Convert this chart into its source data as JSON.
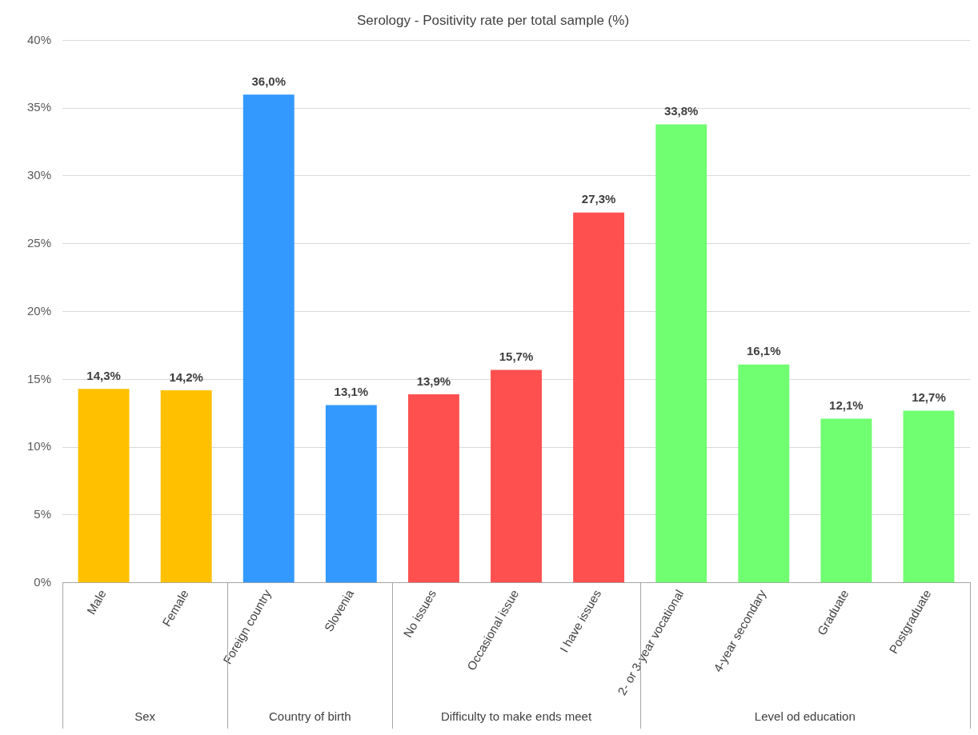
{
  "chart_data": {
    "type": "bar",
    "title": "Serology - Positivity rate per total sample (%)",
    "categories": [
      "Male",
      "Female",
      "Foreign country",
      "Slovenia",
      "No issues",
      "Occasional issue",
      "I have issues",
      "2- or 3-year vocational",
      "4-year secondary",
      "Graduate",
      "Postgraduate"
    ],
    "values": [
      14.3,
      14.2,
      36.0,
      13.1,
      13.9,
      15.7,
      27.3,
      33.8,
      16.1,
      12.1,
      12.7
    ],
    "value_labels": [
      "14,3%",
      "14,2%",
      "36,0%",
      "13,1%",
      "13,9%",
      "15,7%",
      "27,3%",
      "33,8%",
      "16,1%",
      "12,1%",
      "12,7%"
    ],
    "colors": [
      "#ffc000",
      "#ffc000",
      "#3399ff",
      "#3399ff",
      "#ff5050",
      "#ff5050",
      "#ff5050",
      "#70ff70",
      "#70ff70",
      "#70ff70",
      "#70ff70"
    ],
    "annotations": [
      "Sex",
      "Country of birth",
      "Difficulty to make ends meet",
      "Level od education"
    ],
    "ylim": [
      0,
      40
    ],
    "yticks": [
      {
        "value": 0,
        "label": "0%"
      },
      {
        "value": 5,
        "label": "5%"
      },
      {
        "value": 10,
        "label": "10%"
      },
      {
        "value": 15,
        "label": "15%"
      },
      {
        "value": 20,
        "label": "20%"
      },
      {
        "value": 25,
        "label": "25%"
      },
      {
        "value": 30,
        "label": "30%"
      },
      {
        "value": 35,
        "label": "35%"
      },
      {
        "value": 40,
        "label": "40%"
      }
    ],
    "grid": "y",
    "legend": false
  }
}
